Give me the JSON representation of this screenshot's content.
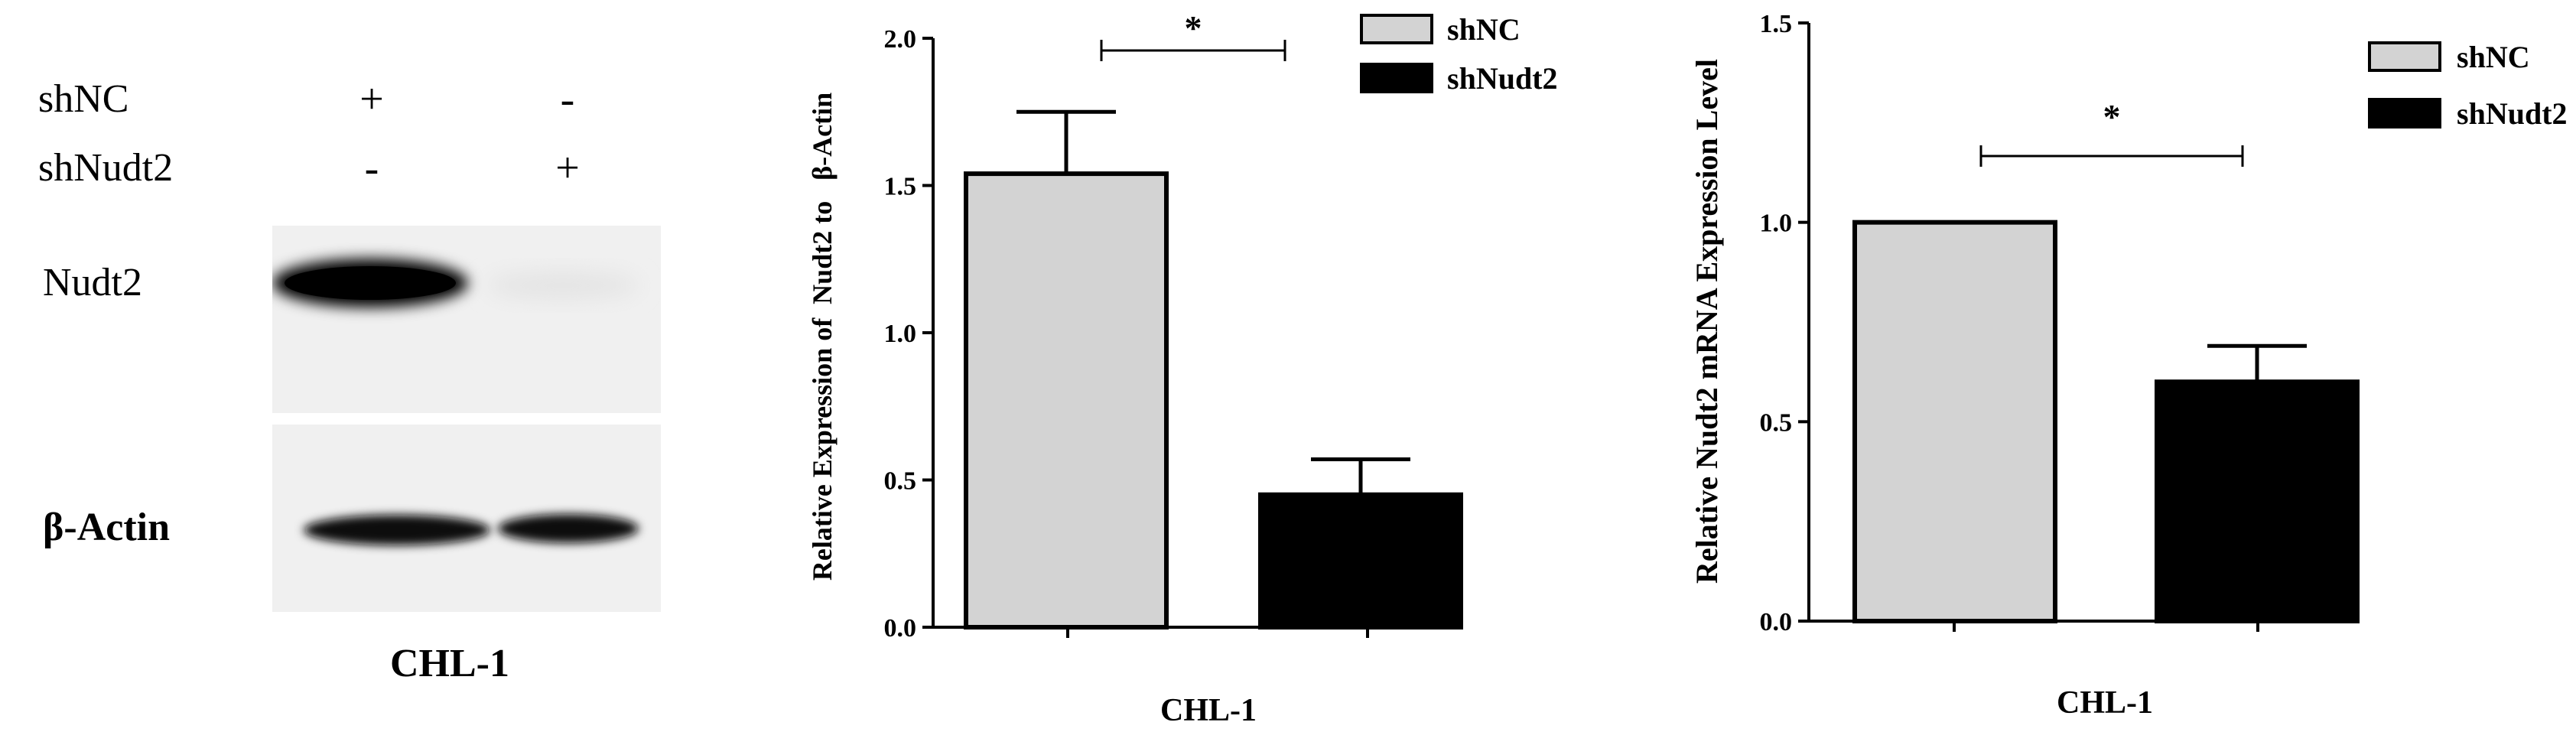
{
  "blot_panel": {
    "rows": [
      {
        "label": "shNC",
        "signs": [
          "+",
          "-"
        ]
      },
      {
        "label": "shNudt2",
        "signs": [
          "-",
          "+"
        ]
      }
    ],
    "bands": [
      {
        "label": "Nudt2",
        "intensities": [
          1.0,
          0.02
        ]
      },
      {
        "label": "β-Actin",
        "intensities": [
          0.95,
          0.9
        ]
      }
    ],
    "cell_line": "CHL-1"
  },
  "chart_data": [
    {
      "type": "bar",
      "categories": [
        "CHL-1"
      ],
      "series": [
        {
          "name": "shNC",
          "values": [
            1.54
          ],
          "error": [
            0.21
          ],
          "color": "#d3d3d3"
        },
        {
          "name": "shNudt2",
          "values": [
            0.45
          ],
          "error": [
            0.12
          ],
          "color": "#000000"
        }
      ],
      "xlabel": "CHL-1",
      "ylabel": "Relative Expression of  Nudt2 to   β-Actin",
      "ylim": [
        0,
        2.0
      ],
      "yticks": [
        "0.0",
        "0.5",
        "1.0",
        "1.5",
        "2.0"
      ],
      "significance": "*",
      "legend": "top-right",
      "grid": false
    },
    {
      "type": "bar",
      "categories": [
        "CHL-1"
      ],
      "series": [
        {
          "name": "shNC",
          "values": [
            1.0
          ],
          "error": [
            0.0
          ],
          "color": "#d3d3d3"
        },
        {
          "name": "shNudt2",
          "values": [
            0.6
          ],
          "error": [
            0.09
          ],
          "color": "#000000"
        }
      ],
      "xlabel": "CHL-1",
      "ylabel": "Relative Nudt2 mRNA Expression Level",
      "ylim": [
        0,
        1.5
      ],
      "yticks": [
        "0.0",
        "0.5",
        "1.0",
        "1.5"
      ],
      "significance": "*",
      "legend": "top-right",
      "grid": false
    }
  ]
}
